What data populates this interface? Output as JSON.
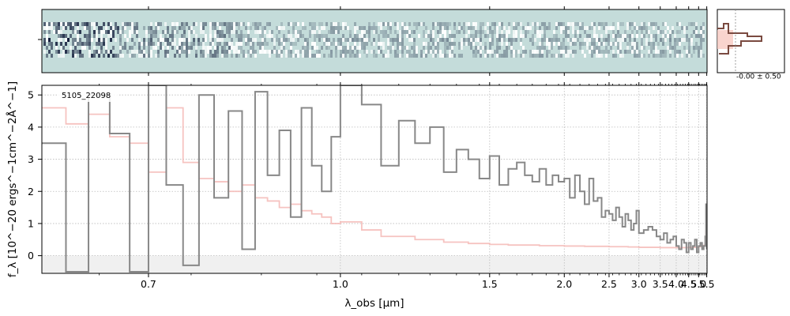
{
  "chart_data": {
    "type": "line",
    "object_label": "5105_22098",
    "xlabel": "λ_obs [μm]",
    "ylabel": "f_λ [10^−20 ergs^−1cm^−2Å^−1]",
    "xlim": [
      0.6,
      5.52
    ],
    "ylim": [
      -0.55,
      5.3
    ],
    "x_scale": "reciprocal",
    "x_ticks": [
      0.7,
      1.0,
      1.5,
      2.0,
      2.5,
      3.0,
      3.5,
      4.0,
      4.5,
      5.0,
      5.5
    ],
    "x_tick_labels": [
      "0.7",
      "1.0",
      "1.5",
      "2.0",
      "2.5",
      "3.0",
      "3.5",
      "4.0",
      "4.5",
      "5.0",
      "5.5"
    ],
    "y_ticks": [
      0,
      1,
      2,
      3,
      4,
      5
    ],
    "y_tick_labels": [
      "0",
      "1",
      "2",
      "3",
      "4",
      "5"
    ],
    "grid": true,
    "histogram_label": "-0.00 ± 0.50",
    "colors": {
      "data": "#888888",
      "model": "#f5b8b5",
      "spectrum_bg": "#c4dcda",
      "hist_line": "#7a4a40",
      "hist_fill": "#f7c9c2"
    },
    "series": [
      {
        "style": "step",
        "x": [
          0.6,
          0.62,
          0.64,
          0.66,
          0.68,
          0.7,
          0.72,
          0.74,
          0.76,
          0.78,
          0.8,
          0.82,
          0.84,
          0.86,
          0.88,
          0.9,
          0.92,
          0.94,
          0.96,
          0.98,
          1.0,
          1.05,
          1.1,
          1.15,
          1.2,
          1.25,
          1.3,
          1.35,
          1.4,
          1.45,
          1.5,
          1.55,
          1.6,
          1.65,
          1.7,
          1.75,
          1.8,
          1.85,
          1.9,
          1.95,
          2.0,
          2.05,
          2.1,
          2.15,
          2.2,
          2.25,
          2.3,
          2.35,
          2.4,
          2.45,
          2.5,
          2.55,
          2.6,
          2.65,
          2.7,
          2.75,
          2.8,
          2.85,
          2.9,
          2.95,
          3.0,
          3.1,
          3.2,
          3.3,
          3.4,
          3.5,
          3.6,
          3.7,
          3.8,
          3.9,
          4.0,
          4.1,
          4.2,
          4.3,
          4.4,
          4.5,
          4.6,
          4.7,
          4.8,
          4.9,
          5.0,
          5.1,
          5.2,
          5.3,
          5.4,
          5.45,
          5.5
        ],
        "y": [
          3.5,
          -0.5,
          5.0,
          3.8,
          -0.5,
          5.3,
          2.2,
          -0.3,
          5.0,
          1.8,
          4.5,
          0.2,
          5.1,
          2.5,
          3.9,
          1.2,
          4.6,
          2.8,
          2.0,
          3.7,
          5.3,
          4.7,
          2.8,
          4.2,
          3.5,
          4.0,
          2.6,
          3.3,
          3.0,
          2.4,
          3.1,
          2.2,
          2.7,
          2.9,
          2.5,
          2.3,
          2.7,
          2.2,
          2.5,
          2.3,
          2.4,
          1.8,
          2.5,
          2.0,
          1.6,
          2.4,
          1.7,
          1.8,
          1.2,
          1.4,
          1.3,
          1.1,
          1.5,
          1.2,
          0.9,
          1.3,
          1.1,
          0.8,
          1.0,
          1.4,
          0.7,
          0.8,
          0.9,
          0.8,
          0.6,
          0.5,
          0.7,
          0.4,
          0.5,
          0.6,
          0.3,
          0.2,
          0.5,
          0.4,
          0.1,
          0.4,
          0.2,
          0.3,
          0.5,
          0.1,
          0.3,
          0.4,
          0.2,
          0.3,
          0.6,
          1.6,
          0.2
        ]
      },
      {
        "style": "step",
        "x": [
          0.6,
          0.62,
          0.64,
          0.66,
          0.68,
          0.7,
          0.72,
          0.74,
          0.76,
          0.78,
          0.8,
          0.82,
          0.84,
          0.86,
          0.88,
          0.9,
          0.92,
          0.94,
          0.96,
          0.98,
          1.0,
          1.05,
          1.1,
          1.2,
          1.3,
          1.4,
          1.5,
          1.6,
          1.8,
          2.0,
          2.2,
          2.5,
          2.8,
          3.0,
          3.5,
          4.0,
          4.5,
          5.0,
          5.2,
          5.3,
          5.4,
          5.45,
          5.5
        ],
        "y": [
          4.6,
          4.1,
          4.4,
          3.7,
          3.5,
          2.6,
          4.6,
          2.9,
          2.4,
          2.3,
          2.0,
          2.2,
          1.8,
          1.7,
          1.5,
          1.6,
          1.4,
          1.3,
          1.2,
          1.0,
          1.05,
          0.8,
          0.6,
          0.5,
          0.42,
          0.38,
          0.35,
          0.33,
          0.31,
          0.3,
          0.29,
          0.28,
          0.27,
          0.26,
          0.25,
          0.25,
          0.26,
          0.28,
          0.3,
          0.32,
          0.4,
          0.75,
          1.6
        ]
      }
    ]
  }
}
